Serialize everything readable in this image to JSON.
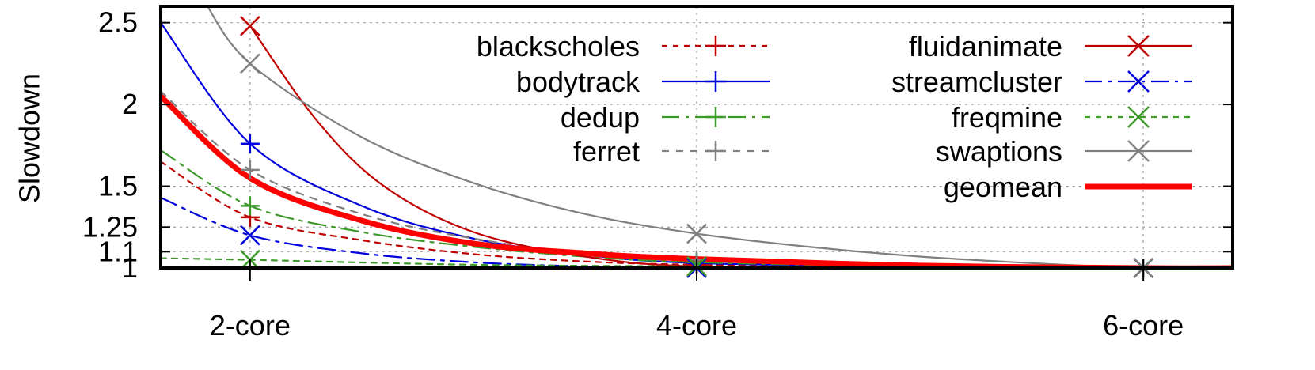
{
  "chart_data": {
    "type": "line",
    "ylabel": "Slowdown",
    "x_tick_labels": [
      "2-core",
      "4-core",
      "6-core"
    ],
    "y_ticks": [
      1,
      1.1,
      1.25,
      1.5,
      2,
      2.5
    ],
    "y_tick_labels": [
      "1",
      "1.1",
      "1.25",
      "1.5",
      "2",
      "2.5"
    ],
    "xlim": [
      1.6,
      6.4
    ],
    "ylim": [
      1,
      2.6
    ],
    "grid": true,
    "legend_position": "top-right",
    "series": [
      {
        "name": "blackscholes",
        "color": "#c00000",
        "dash": "dotted",
        "marker": "plus",
        "x": [
          1.6,
          2,
          2.5,
          3,
          3.5,
          4,
          5,
          6,
          6.4
        ],
        "y": [
          1.65,
          1.31,
          1.17,
          1.085,
          1.04,
          1.02,
          1.005,
          1.0,
          1.0
        ]
      },
      {
        "name": "bodytrack",
        "color": "#0000dd",
        "dash": "solid",
        "marker": "plus",
        "x": [
          1.6,
          2,
          2.5,
          3,
          3.5,
          4,
          5,
          6,
          6.4
        ],
        "y": [
          2.5,
          1.76,
          1.38,
          1.18,
          1.08,
          1.03,
          1.01,
          1.0,
          1.0
        ]
      },
      {
        "name": "dedup",
        "color": "#3d9a2a",
        "dash": "dashdot",
        "marker": "plus",
        "x": [
          1.6,
          2,
          2.5,
          3,
          3.5,
          4,
          5,
          6,
          6.4
        ],
        "y": [
          1.72,
          1.38,
          1.22,
          1.13,
          1.07,
          1.035,
          1.01,
          1.0,
          1.0
        ]
      },
      {
        "name": "ferret",
        "color": "#808080",
        "dash": "dashed",
        "marker": "plus",
        "x": [
          1.6,
          2,
          2.5,
          3,
          3.5,
          4,
          5,
          6,
          6.4
        ],
        "y": [
          2.08,
          1.6,
          1.33,
          1.18,
          1.09,
          1.05,
          1.015,
          1.0,
          1.0
        ]
      },
      {
        "name": "fluidanimate",
        "color": "#c00000",
        "dash": "solid",
        "marker": "cross",
        "x": [
          2,
          2.3,
          2.6,
          3,
          3.5,
          4,
          5,
          6,
          6.4
        ],
        "y": [
          2.48,
          1.9,
          1.5,
          1.22,
          1.07,
          1.01,
          1.0,
          1.0,
          1.0
        ]
      },
      {
        "name": "streamcluster",
        "color": "#0000dd",
        "dash": "dashdot",
        "marker": "cross",
        "x": [
          1.6,
          2,
          2.5,
          3,
          3.5,
          4,
          5,
          6,
          6.4
        ],
        "y": [
          1.43,
          1.2,
          1.09,
          1.035,
          1.01,
          1.0,
          1.0,
          1.0,
          1.0
        ]
      },
      {
        "name": "freqmine",
        "color": "#3d9a2a",
        "dash": "dotted",
        "marker": "cross",
        "x": [
          1.6,
          2,
          3,
          4,
          5,
          6,
          6.4
        ],
        "y": [
          1.06,
          1.05,
          1.02,
          1.01,
          1.005,
          1.0,
          1.0
        ]
      },
      {
        "name": "swaptions",
        "color": "#808080",
        "dash": "solid",
        "marker": "cross",
        "x": [
          1.8,
          2,
          2.5,
          3,
          3.5,
          4,
          4.5,
          5,
          5.5,
          6,
          6.4
        ],
        "y": [
          2.62,
          2.25,
          1.8,
          1.52,
          1.33,
          1.21,
          1.13,
          1.07,
          1.03,
          1.0,
          1.0
        ]
      },
      {
        "name": "geomean",
        "color": "#ff0000",
        "dash": "solid",
        "marker": "none",
        "thick": true,
        "x": [
          1.6,
          2,
          2.5,
          3,
          3.5,
          4,
          5,
          6,
          6.4
        ],
        "y": [
          2.05,
          1.55,
          1.29,
          1.15,
          1.09,
          1.055,
          1.015,
          1.0,
          1.0
        ]
      }
    ]
  }
}
